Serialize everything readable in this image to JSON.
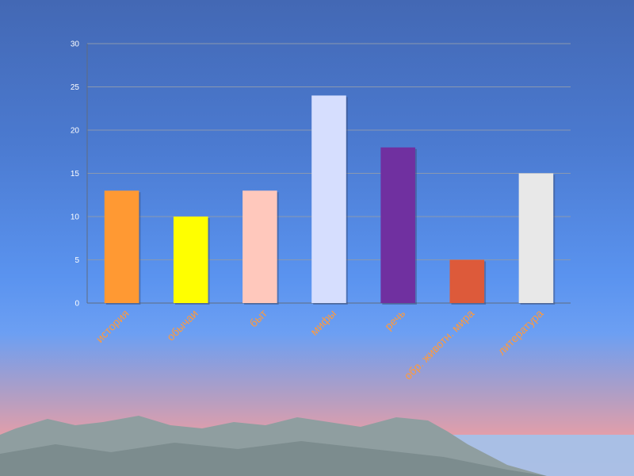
{
  "colors": {
    "grid": "#8a98b0",
    "axis": "#5f6b80",
    "tick_text": "#ffffff",
    "category_text": "#ff9a3c",
    "mountain": "#8f9ea0",
    "mountain_shadow": "#6f8082",
    "sea": "#9ec4f0"
  },
  "chart_data": {
    "type": "bar",
    "title": "",
    "xlabel": "",
    "ylabel": "",
    "categories": [
      "история",
      "обычаи",
      "быт",
      "мифы",
      "речь",
      "обр. животн. мира",
      "литература"
    ],
    "values": [
      13,
      10,
      13,
      24,
      18,
      5,
      15
    ],
    "bar_colors": [
      "#ff9933",
      "#ffff00",
      "#ffc8bc",
      "#d6defe",
      "#7030a0",
      "#dd5a3a",
      "#e8e8e8"
    ],
    "ylim": [
      0,
      30
    ],
    "yticks": [
      0,
      5,
      10,
      15,
      20,
      25,
      30
    ],
    "grid": true,
    "legend": "none"
  }
}
